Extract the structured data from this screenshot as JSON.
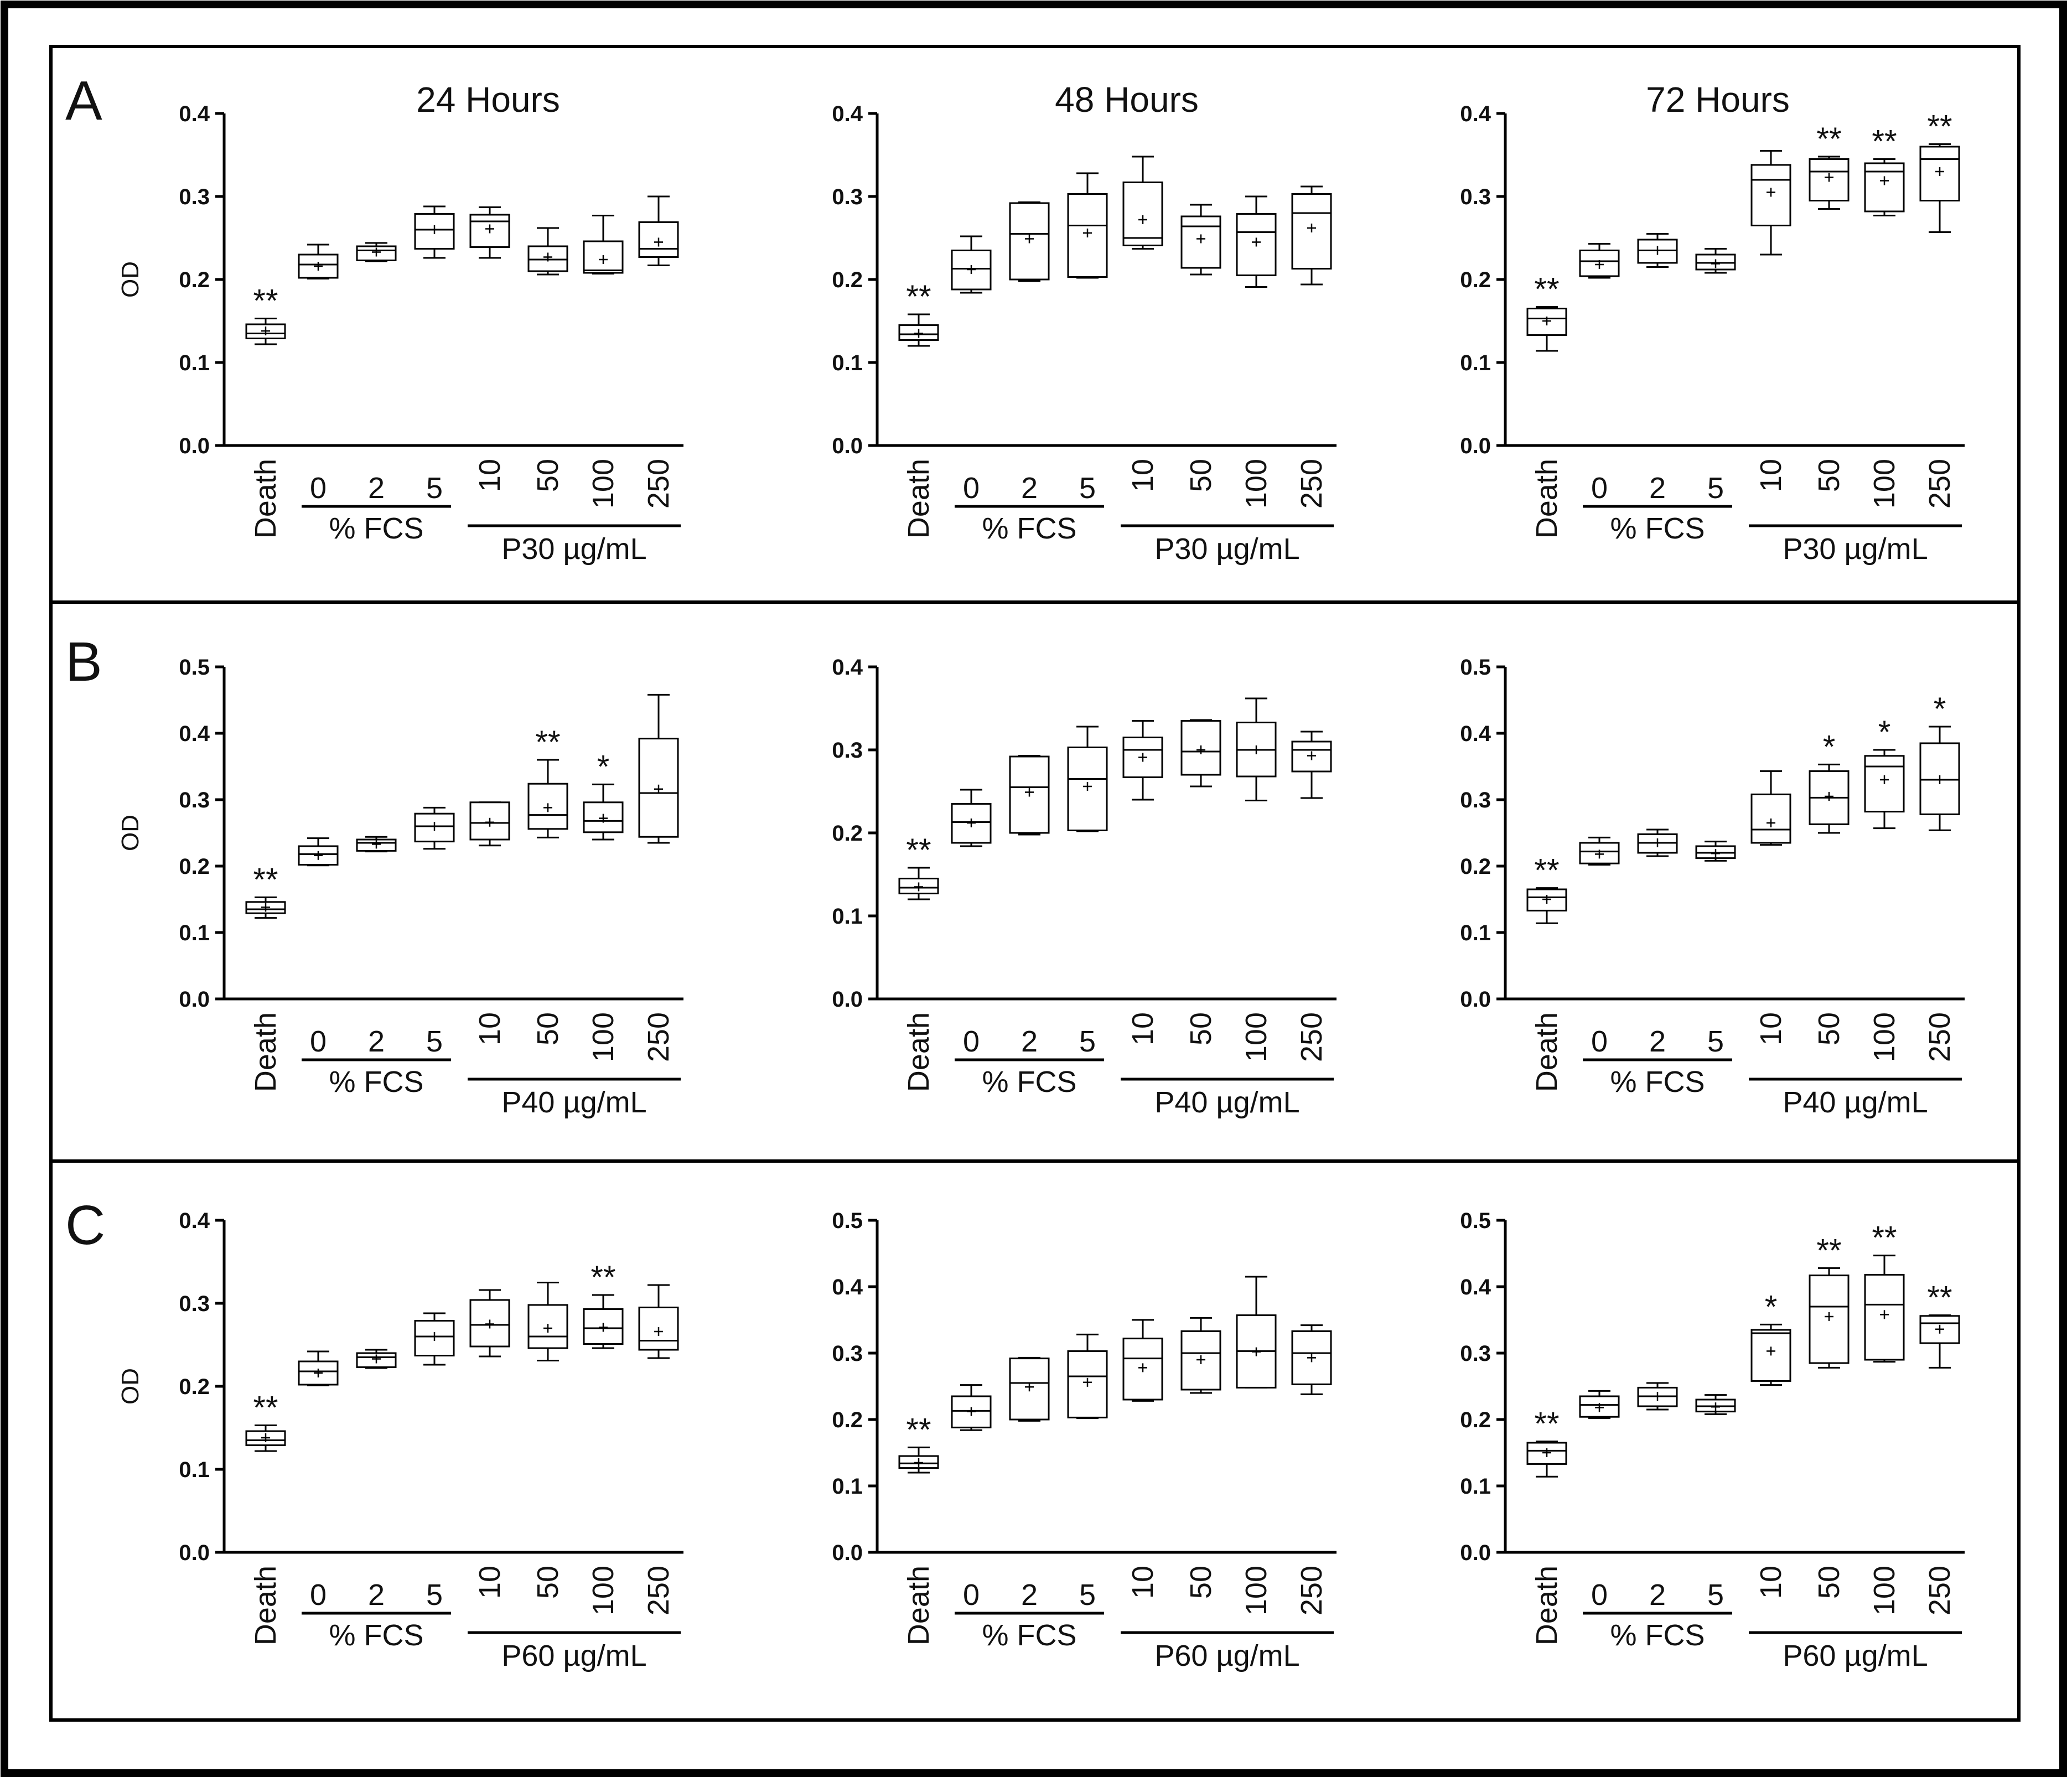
{
  "figure": {
    "panels": [
      {
        "letter": "A",
        "columns": [
          "24 Hours",
          "48 Hours",
          "72 Hours"
        ]
      },
      {
        "letter": "B",
        "columns": [
          "",
          "",
          ""
        ]
      },
      {
        "letter": "C",
        "columns": [
          "",
          "",
          ""
        ]
      }
    ]
  },
  "chart_data": [
    {
      "type": "box",
      "panel": "A",
      "column_title": "24 Hours",
      "ylabel": "OD",
      "ylim": [
        0,
        0.4
      ],
      "yticks": [
        "0.0",
        "0.1",
        "0.2",
        "0.3",
        "0.4"
      ],
      "categories": [
        "Death",
        "0",
        "2",
        "5",
        "10",
        "50",
        "100",
        "250"
      ],
      "group_labels": [
        "% FCS",
        "P30 µg/mL"
      ],
      "boxes": [
        {
          "min": 0.122,
          "q1": 0.129,
          "median": 0.135,
          "q3": 0.146,
          "max": 0.153,
          "mean": 0.138
        },
        {
          "min": 0.201,
          "q1": 0.202,
          "median": 0.218,
          "q3": 0.23,
          "max": 0.242,
          "mean": 0.216
        },
        {
          "min": 0.222,
          "q1": 0.223,
          "median": 0.235,
          "q3": 0.24,
          "max": 0.244,
          "mean": 0.233
        },
        {
          "min": 0.226,
          "q1": 0.237,
          "median": 0.26,
          "q3": 0.279,
          "max": 0.288,
          "mean": 0.26
        },
        {
          "min": 0.226,
          "q1": 0.239,
          "median": 0.27,
          "q3": 0.278,
          "max": 0.287,
          "mean": 0.261
        },
        {
          "min": 0.206,
          "q1": 0.21,
          "median": 0.224,
          "q3": 0.24,
          "max": 0.262,
          "mean": 0.227
        },
        {
          "min": 0.207,
          "q1": 0.208,
          "median": 0.211,
          "q3": 0.246,
          "max": 0.277,
          "mean": 0.224
        },
        {
          "min": 0.217,
          "q1": 0.227,
          "median": 0.237,
          "q3": 0.269,
          "max": 0.3,
          "mean": 0.245
        }
      ],
      "significance": [
        "**",
        "",
        "",
        "",
        "",
        "",
        "",
        ""
      ]
    },
    {
      "type": "box",
      "panel": "A",
      "column_title": "48 Hours",
      "ylabel": "",
      "ylim": [
        0,
        0.4
      ],
      "yticks": [
        "0.0",
        "0.1",
        "0.2",
        "0.3",
        "0.4"
      ],
      "categories": [
        "Death",
        "0",
        "2",
        "5",
        "10",
        "50",
        "100",
        "250"
      ],
      "group_labels": [
        "% FCS",
        "P30 µg/mL"
      ],
      "boxes": [
        {
          "min": 0.12,
          "q1": 0.127,
          "median": 0.134,
          "q3": 0.145,
          "max": 0.158,
          "mean": 0.135
        },
        {
          "min": 0.184,
          "q1": 0.188,
          "median": 0.213,
          "q3": 0.235,
          "max": 0.252,
          "mean": 0.212
        },
        {
          "min": 0.198,
          "q1": 0.2,
          "median": 0.255,
          "q3": 0.292,
          "max": 0.293,
          "mean": 0.249
        },
        {
          "min": 0.202,
          "q1": 0.203,
          "median": 0.265,
          "q3": 0.303,
          "max": 0.328,
          "mean": 0.256
        },
        {
          "min": 0.237,
          "q1": 0.241,
          "median": 0.25,
          "q3": 0.317,
          "max": 0.348,
          "mean": 0.272
        },
        {
          "min": 0.206,
          "q1": 0.214,
          "median": 0.264,
          "q3": 0.276,
          "max": 0.29,
          "mean": 0.249
        },
        {
          "min": 0.191,
          "q1": 0.205,
          "median": 0.257,
          "q3": 0.279,
          "max": 0.3,
          "mean": 0.245
        },
        {
          "min": 0.194,
          "q1": 0.213,
          "median": 0.28,
          "q3": 0.303,
          "max": 0.312,
          "mean": 0.262
        }
      ],
      "significance": [
        "**",
        "",
        "",
        "",
        "",
        "",
        "",
        ""
      ]
    },
    {
      "type": "box",
      "panel": "A",
      "column_title": "72 Hours",
      "ylabel": "",
      "ylim": [
        0,
        0.4
      ],
      "yticks": [
        "0.0",
        "0.1",
        "0.2",
        "0.3",
        "0.4"
      ],
      "categories": [
        "Death",
        "0",
        "2",
        "5",
        "10",
        "50",
        "100",
        "250"
      ],
      "group_labels": [
        "% FCS",
        "P30 µg/mL"
      ],
      "boxes": [
        {
          "min": 0.114,
          "q1": 0.133,
          "median": 0.153,
          "q3": 0.165,
          "max": 0.167,
          "mean": 0.15
        },
        {
          "min": 0.202,
          "q1": 0.204,
          "median": 0.222,
          "q3": 0.235,
          "max": 0.243,
          "mean": 0.218
        },
        {
          "min": 0.215,
          "q1": 0.22,
          "median": 0.235,
          "q3": 0.248,
          "max": 0.255,
          "mean": 0.235
        },
        {
          "min": 0.208,
          "q1": 0.212,
          "median": 0.22,
          "q3": 0.23,
          "max": 0.237,
          "mean": 0.219
        },
        {
          "min": 0.23,
          "q1": 0.265,
          "median": 0.32,
          "q3": 0.338,
          "max": 0.355,
          "mean": 0.305
        },
        {
          "min": 0.285,
          "q1": 0.295,
          "median": 0.33,
          "q3": 0.345,
          "max": 0.348,
          "mean": 0.323
        },
        {
          "min": 0.277,
          "q1": 0.282,
          "median": 0.33,
          "q3": 0.34,
          "max": 0.345,
          "mean": 0.319
        },
        {
          "min": 0.257,
          "q1": 0.295,
          "median": 0.345,
          "q3": 0.36,
          "max": 0.363,
          "mean": 0.33
        }
      ],
      "significance": [
        "**",
        "",
        "",
        "",
        "",
        "**",
        "**",
        "**"
      ]
    },
    {
      "type": "box",
      "panel": "B",
      "column_title": "",
      "ylabel": "OD",
      "ylim": [
        0,
        0.5
      ],
      "yticks": [
        "0.0",
        "0.1",
        "0.2",
        "0.3",
        "0.4",
        "0.5"
      ],
      "categories": [
        "Death",
        "0",
        "2",
        "5",
        "10",
        "50",
        "100",
        "250"
      ],
      "group_labels": [
        "% FCS",
        "P40 µg/mL"
      ],
      "boxes": [
        {
          "min": 0.122,
          "q1": 0.129,
          "median": 0.135,
          "q3": 0.146,
          "max": 0.153,
          "mean": 0.138
        },
        {
          "min": 0.201,
          "q1": 0.202,
          "median": 0.218,
          "q3": 0.23,
          "max": 0.242,
          "mean": 0.216
        },
        {
          "min": 0.222,
          "q1": 0.223,
          "median": 0.235,
          "q3": 0.24,
          "max": 0.244,
          "mean": 0.233
        },
        {
          "min": 0.226,
          "q1": 0.237,
          "median": 0.26,
          "q3": 0.279,
          "max": 0.288,
          "mean": 0.26
        },
        {
          "min": 0.231,
          "q1": 0.24,
          "median": 0.265,
          "q3": 0.296,
          "max": 0.296,
          "mean": 0.266
        },
        {
          "min": 0.243,
          "q1": 0.256,
          "median": 0.277,
          "q3": 0.324,
          "max": 0.36,
          "mean": 0.288
        },
        {
          "min": 0.24,
          "q1": 0.251,
          "median": 0.268,
          "q3": 0.296,
          "max": 0.323,
          "mean": 0.272
        },
        {
          "min": 0.235,
          "q1": 0.244,
          "median": 0.31,
          "q3": 0.392,
          "max": 0.458,
          "mean": 0.316
        }
      ],
      "significance": [
        "**",
        "",
        "",
        "",
        "",
        "**",
        "*",
        ""
      ]
    },
    {
      "type": "box",
      "panel": "B",
      "column_title": "",
      "ylabel": "",
      "ylim": [
        0,
        0.4
      ],
      "yticks": [
        "0.0",
        "0.1",
        "0.2",
        "0.3",
        "0.4"
      ],
      "categories": [
        "Death",
        "0",
        "2",
        "5",
        "10",
        "50",
        "100",
        "250"
      ],
      "group_labels": [
        "% FCS",
        "P40 µg/mL"
      ],
      "boxes": [
        {
          "min": 0.12,
          "q1": 0.127,
          "median": 0.134,
          "q3": 0.145,
          "max": 0.158,
          "mean": 0.135
        },
        {
          "min": 0.184,
          "q1": 0.188,
          "median": 0.213,
          "q3": 0.235,
          "max": 0.252,
          "mean": 0.212
        },
        {
          "min": 0.198,
          "q1": 0.2,
          "median": 0.255,
          "q3": 0.292,
          "max": 0.293,
          "mean": 0.249
        },
        {
          "min": 0.202,
          "q1": 0.203,
          "median": 0.265,
          "q3": 0.303,
          "max": 0.328,
          "mean": 0.256
        },
        {
          "min": 0.24,
          "q1": 0.267,
          "median": 0.3,
          "q3": 0.315,
          "max": 0.335,
          "mean": 0.291
        },
        {
          "min": 0.256,
          "q1": 0.27,
          "median": 0.298,
          "q3": 0.335,
          "max": 0.336,
          "mean": 0.3
        },
        {
          "min": 0.239,
          "q1": 0.268,
          "median": 0.3,
          "q3": 0.333,
          "max": 0.362,
          "mean": 0.3
        },
        {
          "min": 0.242,
          "q1": 0.274,
          "median": 0.3,
          "q3": 0.31,
          "max": 0.322,
          "mean": 0.293
        }
      ],
      "significance": [
        "**",
        "",
        "",
        "",
        "",
        "",
        "",
        ""
      ]
    },
    {
      "type": "box",
      "panel": "B",
      "column_title": "",
      "ylabel": "",
      "ylim": [
        0,
        0.5
      ],
      "yticks": [
        "0.0",
        "0.1",
        "0.2",
        "0.3",
        "0.4",
        "0.5"
      ],
      "categories": [
        "Death",
        "0",
        "2",
        "5",
        "10",
        "50",
        "100",
        "250"
      ],
      "group_labels": [
        "% FCS",
        "P40 µg/mL"
      ],
      "boxes": [
        {
          "min": 0.114,
          "q1": 0.133,
          "median": 0.153,
          "q3": 0.165,
          "max": 0.167,
          "mean": 0.15
        },
        {
          "min": 0.202,
          "q1": 0.204,
          "median": 0.222,
          "q3": 0.235,
          "max": 0.243,
          "mean": 0.218
        },
        {
          "min": 0.215,
          "q1": 0.22,
          "median": 0.235,
          "q3": 0.248,
          "max": 0.255,
          "mean": 0.235
        },
        {
          "min": 0.208,
          "q1": 0.212,
          "median": 0.22,
          "q3": 0.23,
          "max": 0.237,
          "mean": 0.219
        },
        {
          "min": 0.232,
          "q1": 0.235,
          "median": 0.255,
          "q3": 0.308,
          "max": 0.343,
          "mean": 0.265
        },
        {
          "min": 0.25,
          "q1": 0.263,
          "median": 0.303,
          "q3": 0.343,
          "max": 0.353,
          "mean": 0.305
        },
        {
          "min": 0.257,
          "q1": 0.282,
          "median": 0.35,
          "q3": 0.366,
          "max": 0.375,
          "mean": 0.33
        },
        {
          "min": 0.254,
          "q1": 0.278,
          "median": 0.33,
          "q3": 0.385,
          "max": 0.41,
          "mean": 0.33
        }
      ],
      "significance": [
        "**",
        "",
        "",
        "",
        "",
        "*",
        "*",
        "*"
      ]
    },
    {
      "type": "box",
      "panel": "C",
      "column_title": "",
      "ylabel": "OD",
      "ylim": [
        0,
        0.4
      ],
      "yticks": [
        "0.0",
        "0.1",
        "0.2",
        "0.3",
        "0.4"
      ],
      "categories": [
        "Death",
        "0",
        "2",
        "5",
        "10",
        "50",
        "100",
        "250"
      ],
      "group_labels": [
        "% FCS",
        "P60 µg/mL"
      ],
      "boxes": [
        {
          "min": 0.122,
          "q1": 0.129,
          "median": 0.135,
          "q3": 0.146,
          "max": 0.153,
          "mean": 0.138
        },
        {
          "min": 0.201,
          "q1": 0.202,
          "median": 0.218,
          "q3": 0.23,
          "max": 0.242,
          "mean": 0.216
        },
        {
          "min": 0.222,
          "q1": 0.223,
          "median": 0.235,
          "q3": 0.24,
          "max": 0.244,
          "mean": 0.233
        },
        {
          "min": 0.226,
          "q1": 0.237,
          "median": 0.26,
          "q3": 0.279,
          "max": 0.288,
          "mean": 0.26
        },
        {
          "min": 0.236,
          "q1": 0.248,
          "median": 0.274,
          "q3": 0.304,
          "max": 0.316,
          "mean": 0.275
        },
        {
          "min": 0.231,
          "q1": 0.246,
          "median": 0.26,
          "q3": 0.298,
          "max": 0.325,
          "mean": 0.27
        },
        {
          "min": 0.246,
          "q1": 0.251,
          "median": 0.27,
          "q3": 0.293,
          "max": 0.31,
          "mean": 0.271
        },
        {
          "min": 0.234,
          "q1": 0.244,
          "median": 0.255,
          "q3": 0.295,
          "max": 0.322,
          "mean": 0.266
        }
      ],
      "significance": [
        "**",
        "",
        "",
        "",
        "",
        "",
        "**",
        ""
      ]
    },
    {
      "type": "box",
      "panel": "C",
      "column_title": "",
      "ylabel": "",
      "ylim": [
        0,
        0.5
      ],
      "yticks": [
        "0.0",
        "0.1",
        "0.2",
        "0.3",
        "0.4",
        "0.5"
      ],
      "categories": [
        "Death",
        "0",
        "2",
        "5",
        "10",
        "50",
        "100",
        "250"
      ],
      "group_labels": [
        "% FCS",
        "P60 µg/mL"
      ],
      "boxes": [
        {
          "min": 0.12,
          "q1": 0.127,
          "median": 0.134,
          "q3": 0.145,
          "max": 0.158,
          "mean": 0.135
        },
        {
          "min": 0.184,
          "q1": 0.188,
          "median": 0.213,
          "q3": 0.235,
          "max": 0.252,
          "mean": 0.212
        },
        {
          "min": 0.198,
          "q1": 0.2,
          "median": 0.255,
          "q3": 0.292,
          "max": 0.293,
          "mean": 0.249
        },
        {
          "min": 0.202,
          "q1": 0.203,
          "median": 0.265,
          "q3": 0.303,
          "max": 0.328,
          "mean": 0.256
        },
        {
          "min": 0.228,
          "q1": 0.23,
          "median": 0.292,
          "q3": 0.322,
          "max": 0.35,
          "mean": 0.278
        },
        {
          "min": 0.24,
          "q1": 0.245,
          "median": 0.3,
          "q3": 0.333,
          "max": 0.353,
          "mean": 0.29
        },
        {
          "min": 0.248,
          "q1": 0.248,
          "median": 0.303,
          "q3": 0.357,
          "max": 0.415,
          "mean": 0.302
        },
        {
          "min": 0.238,
          "q1": 0.253,
          "median": 0.3,
          "q3": 0.333,
          "max": 0.342,
          "mean": 0.293
        }
      ],
      "significance": [
        "**",
        "",
        "",
        "",
        "",
        "",
        "",
        ""
      ]
    },
    {
      "type": "box",
      "panel": "C",
      "column_title": "",
      "ylabel": "",
      "ylim": [
        0,
        0.5
      ],
      "yticks": [
        "0.0",
        "0.1",
        "0.2",
        "0.3",
        "0.4",
        "0.5"
      ],
      "categories": [
        "Death",
        "0",
        "2",
        "5",
        "10",
        "50",
        "100",
        "250"
      ],
      "group_labels": [
        "% FCS",
        "P60 µg/mL"
      ],
      "boxes": [
        {
          "min": 0.114,
          "q1": 0.133,
          "median": 0.153,
          "q3": 0.165,
          "max": 0.167,
          "mean": 0.15
        },
        {
          "min": 0.202,
          "q1": 0.204,
          "median": 0.222,
          "q3": 0.235,
          "max": 0.243,
          "mean": 0.218
        },
        {
          "min": 0.215,
          "q1": 0.22,
          "median": 0.235,
          "q3": 0.248,
          "max": 0.255,
          "mean": 0.235
        },
        {
          "min": 0.208,
          "q1": 0.212,
          "median": 0.22,
          "q3": 0.23,
          "max": 0.237,
          "mean": 0.219
        },
        {
          "min": 0.252,
          "q1": 0.258,
          "median": 0.33,
          "q3": 0.335,
          "max": 0.343,
          "mean": 0.303
        },
        {
          "min": 0.278,
          "q1": 0.285,
          "median": 0.37,
          "q3": 0.417,
          "max": 0.428,
          "mean": 0.355
        },
        {
          "min": 0.287,
          "q1": 0.29,
          "median": 0.373,
          "q3": 0.418,
          "max": 0.447,
          "mean": 0.358
        },
        {
          "min": 0.278,
          "q1": 0.315,
          "median": 0.345,
          "q3": 0.356,
          "max": 0.357,
          "mean": 0.336
        }
      ],
      "significance": [
        "**",
        "",
        "",
        "",
        "*",
        "**",
        "**",
        "**"
      ]
    }
  ]
}
